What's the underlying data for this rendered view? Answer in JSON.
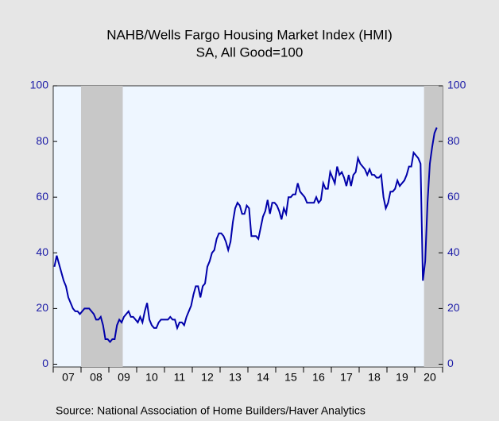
{
  "chart_data": {
    "type": "line",
    "title": "NAHB/Wells Fargo Housing Market Index (HMI)",
    "subtitle": "SA, All Good=100",
    "source": "Source:  National Association of Home Builders/Haver Analytics",
    "categories": [
      null,
      null,
      null,
      null,
      null,
      null,
      "07",
      null,
      null,
      null,
      null,
      null,
      null,
      null,
      null,
      null,
      null,
      null,
      "08",
      null,
      null,
      null,
      null,
      null,
      null,
      null,
      null,
      null,
      null,
      null,
      "09",
      null,
      null,
      null,
      null,
      null,
      null,
      null,
      null,
      null,
      null,
      null,
      "10",
      null,
      null,
      null,
      null,
      null,
      null,
      null,
      null,
      null,
      null,
      null,
      "11",
      null,
      null,
      null,
      null,
      null,
      null,
      null,
      null,
      null,
      null,
      null,
      "12",
      null,
      null,
      null,
      null,
      null,
      null,
      null,
      null,
      null,
      null,
      null,
      "13",
      null,
      null,
      null,
      null,
      null,
      null,
      null,
      null,
      null,
      null,
      null,
      "14",
      null,
      null,
      null,
      null,
      null,
      null,
      null,
      null,
      null,
      null,
      null,
      "15",
      null,
      null,
      null,
      null,
      null,
      null,
      null,
      null,
      null,
      null,
      null,
      "16",
      null,
      null,
      null,
      null,
      null,
      null,
      null,
      null,
      null,
      null,
      null,
      "17",
      null,
      null,
      null,
      null,
      null,
      null,
      null,
      null,
      null,
      null,
      null,
      "18",
      null,
      null,
      null,
      null,
      null,
      null,
      null,
      null,
      null,
      null,
      null,
      "19",
      null,
      null,
      null,
      null,
      null,
      null,
      null,
      null,
      null,
      null,
      null,
      "20",
      null,
      null,
      null
    ],
    "series": [
      {
        "name": "HMI",
        "color": "#0000aa",
        "values": [
          35,
          39,
          36,
          33,
          30,
          28,
          24,
          22,
          20,
          19,
          19,
          18,
          19,
          20,
          20,
          20,
          19,
          18,
          16,
          16,
          17,
          14,
          9,
          9,
          8,
          9,
          9,
          14,
          16,
          15,
          17,
          18,
          19,
          17,
          17,
          16,
          15,
          17,
          15,
          19,
          22,
          16,
          14,
          13,
          13,
          15,
          16,
          16,
          16,
          16,
          17,
          16,
          16,
          13,
          15,
          15,
          14,
          17,
          19,
          21,
          25,
          28,
          28,
          24,
          28,
          29,
          35,
          37,
          40,
          41,
          45,
          47,
          47,
          46,
          44,
          41,
          44,
          51,
          56,
          58,
          57,
          54,
          54,
          57,
          56,
          46,
          46,
          46,
          45,
          49,
          53,
          55,
          59,
          54,
          58,
          58,
          57,
          55,
          52,
          56,
          54,
          60,
          60,
          61,
          61,
          65,
          62,
          61,
          60,
          58,
          58,
          58,
          58,
          60,
          58,
          59,
          65,
          63,
          63,
          69,
          67,
          65,
          71,
          68,
          69,
          67,
          64,
          68,
          64,
          68,
          69,
          74,
          72,
          71,
          70,
          68,
          70,
          68,
          68,
          67,
          67,
          68,
          60,
          56,
          58,
          62,
          62,
          63,
          66,
          64,
          65,
          66,
          68,
          71,
          71,
          76,
          75,
          74,
          72,
          30,
          37,
          58,
          72,
          78,
          83,
          85
        ]
      }
    ],
    "shaded_periods": [
      [
        12,
        30
      ],
      [
        160,
        168
      ]
    ],
    "ylim": [
      -1,
      100
    ],
    "yticks": [
      0,
      20,
      40,
      60,
      80,
      100
    ],
    "y2lim": [
      -1,
      100
    ],
    "y2ticks": [
      0,
      20,
      40,
      60,
      80,
      100
    ]
  }
}
